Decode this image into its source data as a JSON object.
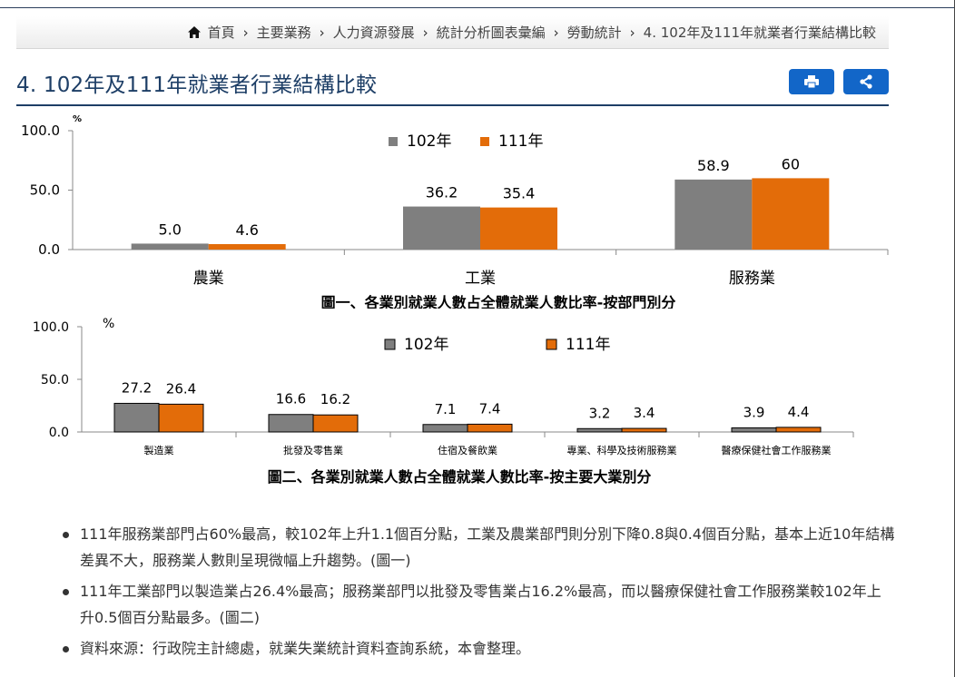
{
  "breadcrumb": {
    "items": [
      "首頁",
      "主要業務",
      "人力資源發展",
      "統計分析圖表彙編",
      "勞動統計",
      "4. 102年及111年就業者行業結構比較"
    ]
  },
  "page": {
    "title": "4. 102年及111年就業者行業結構比較"
  },
  "icons": {
    "home": "home-icon",
    "print": "print-icon",
    "share": "share-icon"
  },
  "colors": {
    "title": "#1d3e66",
    "button": "#1266c8",
    "series_102": "#7f7f7f",
    "series_111": "#e36c09"
  },
  "chart_data": [
    {
      "type": "bar",
      "title": "圖一、各業別就業人數占全體就業人數比率-按部門別分",
      "ylabel": "%",
      "ylim": [
        0,
        100
      ],
      "yticks": [
        "0.0",
        "50.0",
        "100.0"
      ],
      "categories": [
        "農業",
        "工業",
        "服務業"
      ],
      "legend_position": "top-center",
      "series": [
        {
          "name": "102年",
          "values": [
            5.0,
            36.2,
            58.9
          ],
          "labels": [
            "5.0",
            "36.2",
            "58.9"
          ],
          "color": "#7f7f7f"
        },
        {
          "name": "111年",
          "values": [
            4.6,
            35.4,
            60
          ],
          "labels": [
            "4.6",
            "35.4",
            "60"
          ],
          "color": "#e36c09"
        }
      ]
    },
    {
      "type": "bar",
      "title": "圖二、各業別就業人數占全體就業人數比率-按主要大業別分",
      "ylabel": "%",
      "ylim": [
        0,
        100
      ],
      "yticks": [
        "0.0",
        "50.0",
        "100.0"
      ],
      "categories": [
        "製造業",
        "批發及零售業",
        "住宿及餐飲業",
        "專業、科學及技術服務業",
        "醫療保健社會工作服務業"
      ],
      "legend_position": "top-center",
      "series": [
        {
          "name": "102年",
          "values": [
            27.2,
            16.6,
            7.1,
            3.2,
            3.9
          ],
          "labels": [
            "27.2",
            "16.6",
            "7.1",
            "3.2",
            "3.9"
          ],
          "color": "#7f7f7f"
        },
        {
          "name": "111年",
          "values": [
            26.4,
            16.2,
            7.4,
            3.4,
            4.4
          ],
          "labels": [
            "26.4",
            "16.2",
            "7.4",
            "3.4",
            "4.4"
          ],
          "color": "#e36c09"
        }
      ]
    }
  ],
  "notes": [
    "111年服務業部門占60%最高，較102年上升1.1個百分點，工業及農業部門則分別下降0.8與0.4個百分點，基本上近10年結構差異不大，服務業人數則呈現微幅上升趨勢。(圖一)",
    "111年工業部門以製造業占26.4%最高；服務業部門以批發及零售業占16.2%最高，而以醫療保健社會工作服務業較102年上升0.5個百分點最多。(圖二)",
    "資料來源：行政院主計總處，就業失業統計資料查詢系統，本會整理。"
  ]
}
